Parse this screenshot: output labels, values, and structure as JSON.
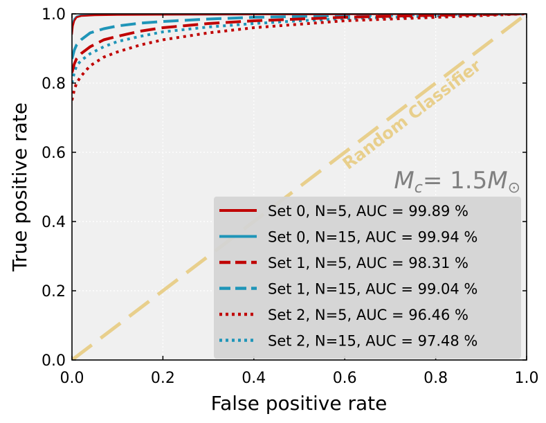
{
  "chart_data": {
    "type": "line",
    "title": "",
    "xlabel": "False positive rate",
    "ylabel": "True positive rate",
    "xlim": [
      0.0,
      1.0
    ],
    "ylim": [
      0.0,
      1.0
    ],
    "grid": true,
    "legend_position": "lower-right",
    "x_ticks": [
      "0.0",
      "0.2",
      "0.4",
      "0.6",
      "0.8",
      "1.0"
    ],
    "y_ticks": [
      "0.0",
      "0.2",
      "0.4",
      "0.6",
      "0.8",
      "1.0"
    ],
    "annotations": {
      "diagonal_label": "Random Classifier",
      "mass_label": "M",
      "mass_subscript": "c",
      "mass_equals": "= 1.5",
      "mass_unit": "M",
      "mass_unit_subscript": "⊙"
    },
    "colors": {
      "red": "#c00000",
      "teal": "#1f95b8",
      "diagonal": "#e8cf8c",
      "plot_bg": "#f0f0f0",
      "legend_bg": "#d4d4d4",
      "annotation_gray": "#808080"
    },
    "diagonal": {
      "x": [
        0.0,
        1.0
      ],
      "y": [
        0.0,
        1.0
      ]
    },
    "series": [
      {
        "name": "Set 0, N=5, AUC = 99.89 %",
        "color": "red",
        "dash": "solid",
        "x": [
          0,
          0.002,
          0.005,
          0.01,
          0.02,
          0.05,
          0.1,
          0.3,
          0.6,
          1.0
        ],
        "y": [
          0.94,
          0.965,
          0.98,
          0.99,
          0.994,
          0.996,
          0.997,
          0.998,
          0.999,
          1.0
        ]
      },
      {
        "name": "Set 0, N=15, AUC = 99.94 %",
        "color": "teal",
        "dash": "solid",
        "x": [
          0,
          0.002,
          0.005,
          0.01,
          0.02,
          0.05,
          0.1,
          0.3,
          0.6,
          1.0
        ],
        "y": [
          0.96,
          0.975,
          0.985,
          0.992,
          0.996,
          0.997,
          0.998,
          0.998,
          0.999,
          1.0
        ]
      },
      {
        "name": "Set 1, N=5, AUC = 98.31 %",
        "color": "red",
        "dash": "dashed",
        "x": [
          0,
          0.005,
          0.01,
          0.02,
          0.04,
          0.07,
          0.1,
          0.15,
          0.2,
          0.3,
          0.4,
          0.6,
          0.8,
          1.0
        ],
        "y": [
          0.83,
          0.855,
          0.87,
          0.885,
          0.905,
          0.925,
          0.935,
          0.95,
          0.96,
          0.972,
          0.98,
          0.99,
          0.996,
          1.0
        ]
      },
      {
        "name": "Set 1, N=15, AUC = 99.04 %",
        "color": "teal",
        "dash": "dashed",
        "x": [
          0,
          0.005,
          0.01,
          0.02,
          0.04,
          0.07,
          0.1,
          0.15,
          0.2,
          0.3,
          0.4,
          0.6,
          0.8,
          1.0
        ],
        "y": [
          0.87,
          0.895,
          0.91,
          0.925,
          0.945,
          0.957,
          0.965,
          0.973,
          0.978,
          0.985,
          0.99,
          0.995,
          0.998,
          1.0
        ]
      },
      {
        "name": "Set 2, N=5, AUC = 96.46 %",
        "color": "red",
        "dash": "dotted",
        "x": [
          0,
          0.005,
          0.01,
          0.02,
          0.04,
          0.07,
          0.1,
          0.15,
          0.2,
          0.3,
          0.4,
          0.5,
          0.6,
          0.8,
          1.0
        ],
        "y": [
          0.75,
          0.78,
          0.8,
          0.82,
          0.85,
          0.875,
          0.89,
          0.91,
          0.925,
          0.945,
          0.96,
          0.97,
          0.98,
          0.99,
          1.0
        ]
      },
      {
        "name": "Set 2, N=15, AUC = 97.48 %",
        "color": "teal",
        "dash": "dotted",
        "x": [
          0,
          0.005,
          0.01,
          0.02,
          0.04,
          0.07,
          0.1,
          0.15,
          0.2,
          0.3,
          0.4,
          0.5,
          0.6,
          0.8,
          1.0
        ],
        "y": [
          0.8,
          0.83,
          0.85,
          0.865,
          0.885,
          0.905,
          0.92,
          0.935,
          0.948,
          0.962,
          0.972,
          0.98,
          0.986,
          0.994,
          1.0
        ]
      }
    ]
  }
}
